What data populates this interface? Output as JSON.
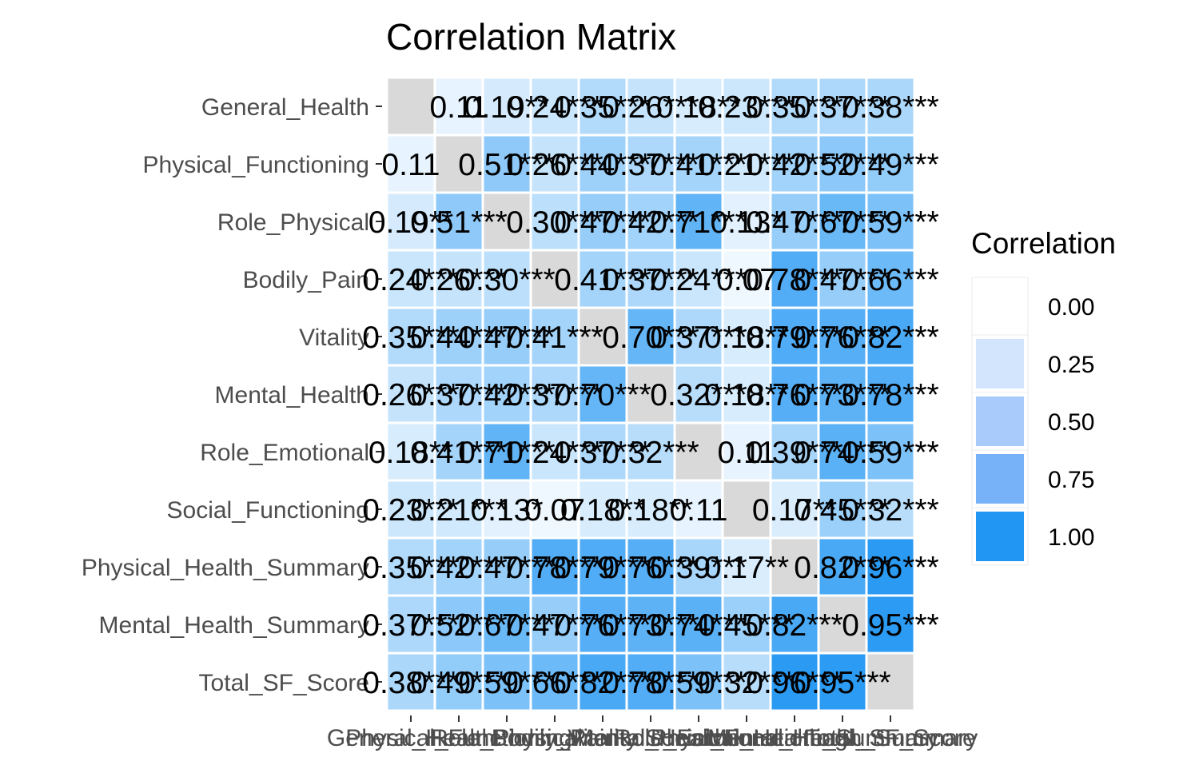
{
  "chart_data": {
    "type": "heatmap",
    "title": "Correlation Matrix",
    "variables": [
      "General_Health",
      "Physical_Functioning",
      "Role_Physical",
      "Bodily_Pain",
      "Vitality",
      "Mental_Health",
      "Role_Emotional",
      "Social_Functioning",
      "Physical_Health_Summary",
      "Mental_Health_Summary",
      "Total_SF_Score"
    ],
    "values": [
      [
        null,
        0.11,
        0.19,
        0.24,
        0.35,
        0.26,
        0.18,
        0.23,
        0.35,
        0.37,
        0.38
      ],
      [
        0.11,
        null,
        0.51,
        0.26,
        0.44,
        0.37,
        0.41,
        0.21,
        0.42,
        0.52,
        0.49
      ],
      [
        0.19,
        0.51,
        null,
        0.3,
        0.47,
        0.42,
        0.71,
        0.13,
        0.47,
        0.67,
        0.59
      ],
      [
        0.24,
        0.26,
        0.3,
        null,
        0.41,
        0.37,
        0.24,
        0.07,
        0.78,
        0.47,
        0.66
      ],
      [
        0.35,
        0.44,
        0.47,
        0.41,
        null,
        0.7,
        0.37,
        0.18,
        0.79,
        0.76,
        0.82
      ],
      [
        0.26,
        0.37,
        0.42,
        0.37,
        0.7,
        null,
        0.32,
        0.18,
        0.76,
        0.73,
        0.78
      ],
      [
        0.18,
        0.41,
        0.71,
        0.24,
        0.37,
        0.32,
        null,
        0.11,
        0.39,
        0.74,
        0.59
      ],
      [
        0.23,
        0.21,
        0.13,
        0.07,
        0.18,
        0.18,
        0.11,
        null,
        0.17,
        0.45,
        0.32
      ],
      [
        0.35,
        0.42,
        0.47,
        0.78,
        0.79,
        0.76,
        0.39,
        0.17,
        null,
        0.82,
        0.96
      ],
      [
        0.37,
        0.52,
        0.67,
        0.47,
        0.76,
        0.73,
        0.74,
        0.45,
        0.82,
        null,
        0.95
      ],
      [
        0.38,
        0.49,
        0.59,
        0.66,
        0.82,
        0.78,
        0.59,
        0.32,
        0.96,
        0.95,
        null
      ]
    ],
    "cell_labels": [
      [
        "",
        "0.11",
        "0.19**",
        "0.24***",
        "0.35***",
        "0.26***",
        "0.18**",
        "0.23***",
        "0.35***",
        "0.37***",
        "0.38***"
      ],
      [
        "0.11",
        "",
        "0.51***",
        "0.26***",
        "0.44***",
        "0.37***",
        "0.41***",
        "0.21***",
        "0.42***",
        "0.52***",
        "0.49***"
      ],
      [
        "0.19**",
        "0.51***",
        "",
        "0.30***",
        "0.47***",
        "0.42***",
        "0.71***",
        "0.13*",
        "0.47***",
        "0.67***",
        "0.59***"
      ],
      [
        "0.24***",
        "0.26***",
        "0.30***",
        "",
        "0.41***",
        "0.37***",
        "0.24***",
        "0.07",
        "0.78***",
        "0.47***",
        "0.66***"
      ],
      [
        "0.35***",
        "0.44***",
        "0.47***",
        "0.41***",
        "",
        "0.70***",
        "0.37***",
        "0.18**",
        "0.79***",
        "0.76***",
        "0.82***"
      ],
      [
        "0.26***",
        "0.37***",
        "0.42***",
        "0.37***",
        "0.70***",
        "",
        "0.32***",
        "0.18**",
        "0.76***",
        "0.73***",
        "0.78***"
      ],
      [
        "0.18**",
        "0.41***",
        "0.71***",
        "0.24***",
        "0.37***",
        "0.32***",
        "",
        "0.11",
        "0.39***",
        "0.74***",
        "0.59***"
      ],
      [
        "0.23***",
        "0.21***",
        "0.13*",
        "0.07",
        "0.18**",
        "0.18**",
        "0.11",
        "",
        "0.17**",
        "0.45***",
        "0.32***"
      ],
      [
        "0.35***",
        "0.42***",
        "0.47***",
        "0.78***",
        "0.79***",
        "0.76***",
        "0.39***",
        "0.17**",
        "",
        "0.82***",
        "0.96***"
      ],
      [
        "0.37***",
        "0.52***",
        "0.67***",
        "0.47***",
        "0.76***",
        "0.73***",
        "0.74***",
        "0.45***",
        "0.82***",
        "",
        "0.95***"
      ],
      [
        "0.38***",
        "0.49***",
        "0.59***",
        "0.66***",
        "0.82***",
        "0.78***",
        "0.59***",
        "0.32***",
        "0.96***",
        "0.95***",
        ""
      ]
    ],
    "diagonal_color": "#d9d9d9",
    "color_low": "#ffffff",
    "color_high": "#2196f3",
    "range": [
      0,
      1
    ],
    "legend": {
      "title": "Correlation",
      "position": "right",
      "breaks": [
        "0.00",
        "0.25",
        "0.50",
        "0.75",
        "1.00"
      ],
      "colors": [
        "#ffffff",
        "#d3e5fd",
        "#a9cbfb",
        "#77b1f7",
        "#2196f3"
      ]
    }
  }
}
